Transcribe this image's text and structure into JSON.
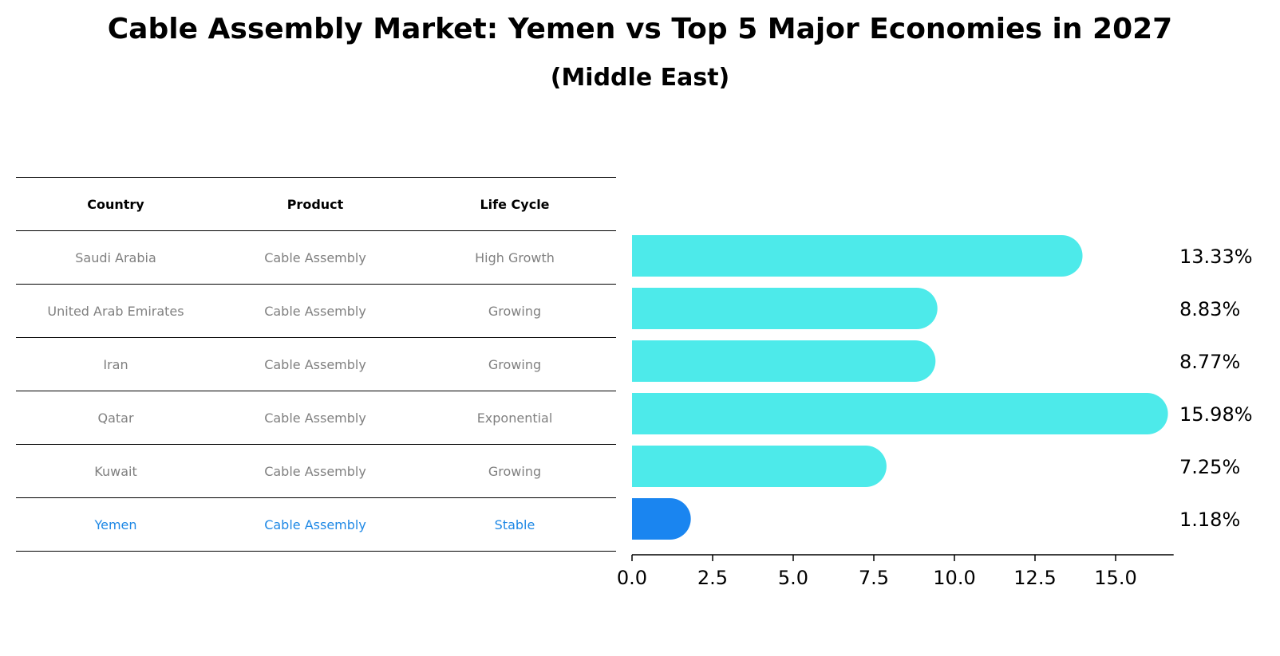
{
  "title": "Cable Assembly Market: Yemen vs Top 5 Major Economies in 2027",
  "subtitle": "(Middle East)",
  "table": {
    "headers": [
      "Country",
      "Product",
      "Life Cycle"
    ],
    "rows": [
      [
        "Saudi Arabia",
        "Cable Assembly",
        "High Growth"
      ],
      [
        "United Arab Emirates",
        "Cable Assembly",
        "Growing"
      ],
      [
        "Iran",
        "Cable Assembly",
        "Growing"
      ],
      [
        "Qatar",
        "Cable Assembly",
        "Exponential"
      ],
      [
        "Kuwait",
        "Cable Assembly",
        "Growing"
      ],
      [
        "Yemen",
        "Cable Assembly",
        "Stable"
      ]
    ]
  },
  "colors": {
    "bar": "#4deaea",
    "highlight_bar": "#1a85f0",
    "highlight_text": "#1e88e5",
    "muted_text": "#808080"
  },
  "chart_data": {
    "type": "bar",
    "orientation": "horizontal",
    "categories": [
      "Saudi Arabia",
      "United Arab Emirates",
      "Iran",
      "Qatar",
      "Kuwait",
      "Yemen"
    ],
    "values": [
      13.33,
      8.83,
      8.77,
      15.98,
      7.25,
      1.18
    ],
    "value_labels": [
      "13.33%",
      "8.83%",
      "8.77%",
      "15.98%",
      "7.25%",
      "1.18%"
    ],
    "highlight_index": 5,
    "xlim": [
      0,
      16.8
    ],
    "xticks": [
      0.0,
      2.5,
      5.0,
      7.5,
      10.0,
      12.5,
      15.0
    ],
    "xtick_labels": [
      "0.0",
      "2.5",
      "5.0",
      "7.5",
      "10.0",
      "12.5",
      "15.0"
    ],
    "title": "Cable Assembly Market: Yemen vs Top 5 Major Economies in 2027",
    "xlabel": "",
    "ylabel": ""
  }
}
